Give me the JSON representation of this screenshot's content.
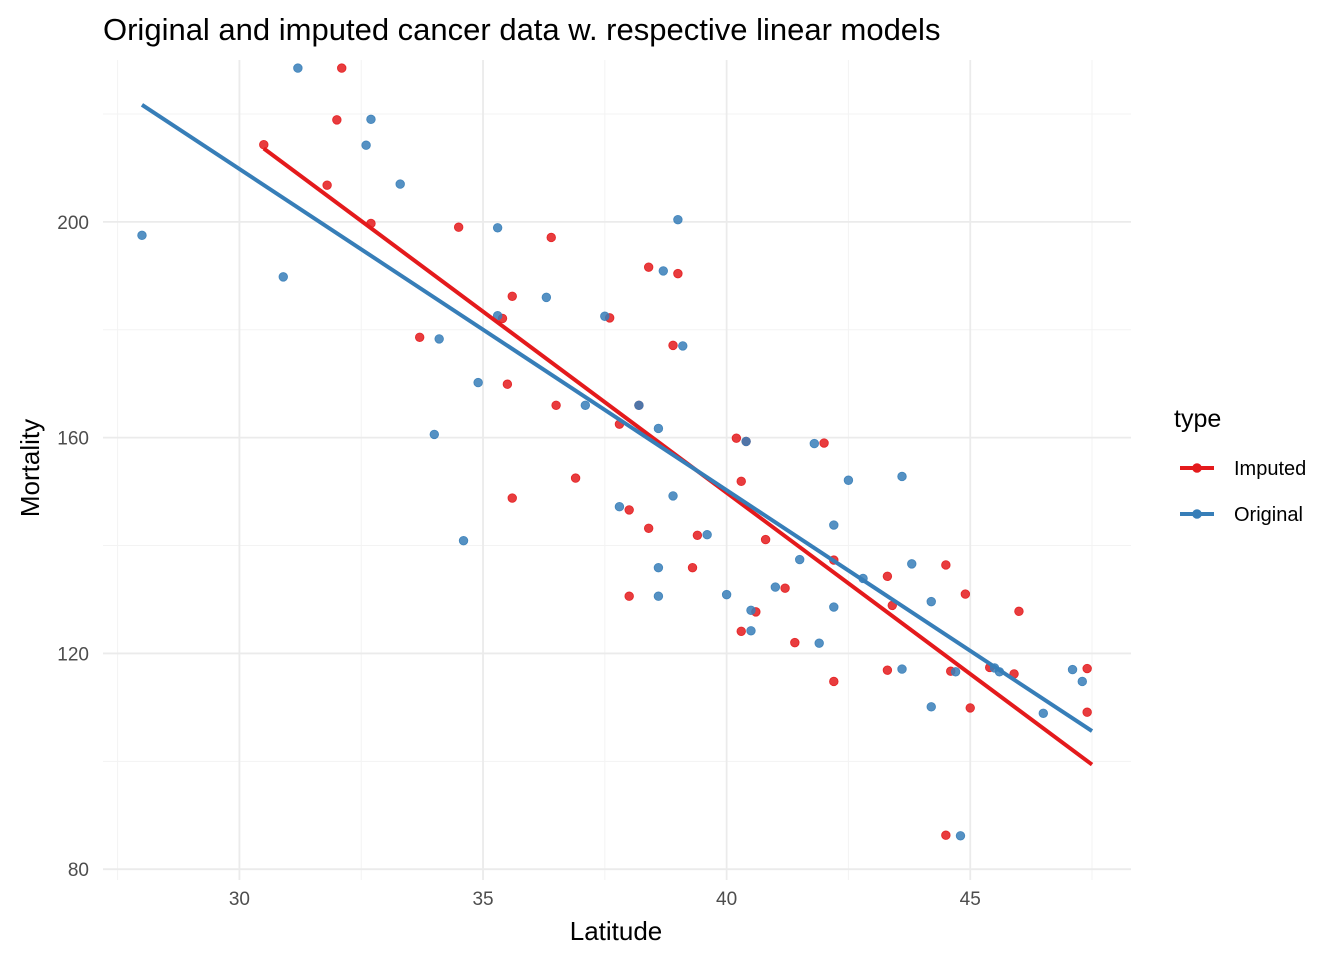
{
  "chart_data": {
    "type": "scatter",
    "title": "Original and imputed cancer data w. respective linear models",
    "xlabel": "Latitude",
    "ylabel": "Mortality",
    "xlim": [
      27.2,
      48.3
    ],
    "ylim": [
      78,
      230
    ],
    "x_ticks": [
      30,
      35,
      40,
      45
    ],
    "y_ticks": [
      80,
      120,
      160,
      200
    ],
    "x_tick_labels": [
      "30",
      "35",
      "40",
      "45"
    ],
    "y_tick_labels": [
      "80",
      "120",
      "160",
      "200"
    ],
    "grid": true,
    "legend": {
      "title": "type",
      "position": "right"
    },
    "series": [
      {
        "name": "Imputed",
        "color": "#E41A1C",
        "points": [
          [
            30.5,
            214.3
          ],
          [
            31.8,
            206.8
          ],
          [
            32.0,
            218.9
          ],
          [
            32.1,
            228.5
          ],
          [
            32.7,
            199.7
          ],
          [
            33.7,
            178.6
          ],
          [
            34.5,
            199.0
          ],
          [
            35.4,
            182.1
          ],
          [
            35.5,
            169.9
          ],
          [
            35.6,
            186.2
          ],
          [
            35.6,
            148.8
          ],
          [
            36.4,
            197.1
          ],
          [
            36.5,
            166.0
          ],
          [
            36.9,
            152.5
          ],
          [
            37.6,
            182.2
          ],
          [
            37.8,
            162.5
          ],
          [
            38.0,
            146.6
          ],
          [
            38.0,
            130.6
          ],
          [
            38.2,
            166.0
          ],
          [
            38.4,
            191.6
          ],
          [
            38.4,
            143.2
          ],
          [
            38.9,
            177.1
          ],
          [
            39.0,
            190.4
          ],
          [
            39.3,
            135.9
          ],
          [
            39.4,
            141.9
          ],
          [
            40.2,
            159.9
          ],
          [
            40.3,
            124.1
          ],
          [
            40.3,
            151.9
          ],
          [
            40.4,
            159.3
          ],
          [
            40.6,
            127.7
          ],
          [
            40.8,
            141.1
          ],
          [
            41.2,
            132.1
          ],
          [
            41.4,
            122.0
          ],
          [
            42.0,
            159.0
          ],
          [
            42.2,
            114.8
          ],
          [
            42.2,
            137.3
          ],
          [
            43.3,
            116.9
          ],
          [
            43.3,
            134.3
          ],
          [
            43.4,
            128.9
          ],
          [
            44.5,
            136.4
          ],
          [
            44.5,
            86.3
          ],
          [
            44.6,
            116.7
          ],
          [
            44.9,
            131.0
          ],
          [
            45.0,
            109.9
          ],
          [
            45.4,
            117.4
          ],
          [
            45.9,
            116.2
          ],
          [
            46.0,
            127.8
          ],
          [
            47.4,
            117.2
          ],
          [
            47.4,
            109.1
          ]
        ],
        "fit": {
          "x": [
            30.5,
            47.5
          ],
          "y": [
            213.6,
            99.4
          ]
        }
      },
      {
        "name": "Original",
        "color": "#377EB8",
        "points": [
          [
            28.0,
            197.5
          ],
          [
            30.9,
            189.8
          ],
          [
            31.2,
            228.5
          ],
          [
            32.6,
            214.2
          ],
          [
            32.7,
            219.0
          ],
          [
            33.3,
            207.0
          ],
          [
            34.0,
            160.6
          ],
          [
            34.1,
            178.3
          ],
          [
            34.6,
            140.9
          ],
          [
            34.9,
            170.2
          ],
          [
            35.3,
            198.9
          ],
          [
            35.3,
            182.6
          ],
          [
            36.3,
            186.0
          ],
          [
            37.1,
            166.0
          ],
          [
            37.5,
            182.5
          ],
          [
            37.8,
            147.2
          ],
          [
            38.2,
            166.0
          ],
          [
            38.6,
            161.7
          ],
          [
            38.6,
            135.9
          ],
          [
            38.6,
            130.6
          ],
          [
            38.7,
            190.9
          ],
          [
            38.9,
            149.2
          ],
          [
            39.0,
            200.4
          ],
          [
            39.1,
            177.0
          ],
          [
            39.6,
            142.0
          ],
          [
            40.0,
            130.9
          ],
          [
            40.4,
            159.3
          ],
          [
            40.5,
            124.2
          ],
          [
            40.5,
            128.0
          ],
          [
            41.0,
            132.3
          ],
          [
            41.5,
            137.4
          ],
          [
            41.8,
            158.9
          ],
          [
            41.9,
            121.9
          ],
          [
            42.2,
            143.8
          ],
          [
            42.2,
            128.6
          ],
          [
            42.5,
            152.1
          ],
          [
            42.8,
            133.9
          ],
          [
            43.6,
            152.8
          ],
          [
            43.6,
            117.1
          ],
          [
            43.8,
            136.6
          ],
          [
            44.2,
            110.1
          ],
          [
            44.2,
            129.6
          ],
          [
            44.7,
            116.6
          ],
          [
            44.8,
            86.2
          ],
          [
            45.5,
            117.3
          ],
          [
            45.6,
            116.6
          ],
          [
            46.5,
            108.9
          ],
          [
            47.1,
            117.0
          ],
          [
            47.3,
            114.8
          ]
        ],
        "fit": {
          "x": [
            28.0,
            47.5
          ],
          "y": [
            221.7,
            105.6
          ]
        }
      }
    ]
  }
}
